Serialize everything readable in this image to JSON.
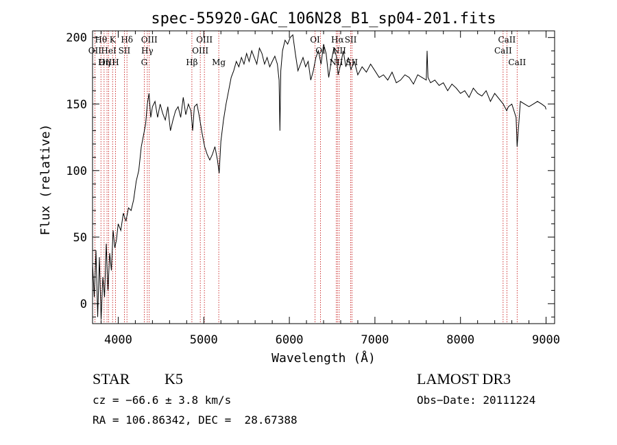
{
  "chart_data": {
    "type": "line",
    "title": "spec-55920-GAC_106N28_B1_sp04-201.fits",
    "xlabel": "Wavelength (Å)",
    "ylabel": "Flux (relative)",
    "xlim": [
      3700,
      9100
    ],
    "ylim": [
      -15,
      205
    ],
    "xticks": [
      4000,
      5000,
      6000,
      7000,
      8000,
      9000
    ],
    "yticks": [
      0,
      50,
      100,
      150,
      200
    ],
    "series": [
      {
        "name": "spectrum",
        "x": [
          3700,
          3720,
          3740,
          3760,
          3780,
          3800,
          3820,
          3840,
          3860,
          3880,
          3900,
          3920,
          3940,
          3960,
          3980,
          4000,
          4030,
          4060,
          4090,
          4120,
          4150,
          4180,
          4210,
          4240,
          4270,
          4300,
          4320,
          4340,
          4360,
          4380,
          4400,
          4430,
          4460,
          4490,
          4520,
          4550,
          4580,
          4610,
          4640,
          4670,
          4700,
          4730,
          4760,
          4790,
          4820,
          4850,
          4870,
          4890,
          4920,
          4950,
          4980,
          5010,
          5040,
          5070,
          5100,
          5130,
          5160,
          5180,
          5200,
          5230,
          5260,
          5290,
          5320,
          5350,
          5380,
          5410,
          5440,
          5470,
          5500,
          5530,
          5560,
          5590,
          5620,
          5650,
          5680,
          5710,
          5740,
          5770,
          5800,
          5830,
          5860,
          5880,
          5890,
          5900,
          5920,
          5950,
          5980,
          6010,
          6040,
          6070,
          6100,
          6130,
          6160,
          6190,
          6220,
          6250,
          6280,
          6310,
          6340,
          6370,
          6400,
          6430,
          6460,
          6490,
          6520,
          6550,
          6570,
          6600,
          6630,
          6660,
          6690,
          6720,
          6760,
          6800,
          6850,
          6900,
          6950,
          7000,
          7050,
          7100,
          7150,
          7200,
          7250,
          7300,
          7350,
          7400,
          7450,
          7500,
          7550,
          7600,
          7610,
          7620,
          7650,
          7700,
          7750,
          7800,
          7850,
          7900,
          7950,
          8000,
          8050,
          8100,
          8150,
          8200,
          8250,
          8300,
          8350,
          8400,
          8450,
          8500,
          8540,
          8560,
          8600,
          8650,
          8662,
          8700,
          8750,
          8800,
          8850,
          8900,
          8950,
          8990,
          9000
        ],
        "values": [
          30,
          5,
          40,
          -10,
          35,
          -12,
          20,
          5,
          45,
          10,
          38,
          25,
          55,
          42,
          48,
          60,
          55,
          68,
          62,
          72,
          70,
          78,
          92,
          100,
          118,
          128,
          135,
          150,
          158,
          140,
          148,
          152,
          140,
          150,
          143,
          138,
          148,
          130,
          138,
          145,
          148,
          140,
          155,
          142,
          150,
          145,
          130,
          148,
          150,
          140,
          128,
          118,
          112,
          108,
          112,
          118,
          108,
          98,
          122,
          138,
          150,
          160,
          170,
          175,
          182,
          178,
          185,
          180,
          188,
          182,
          190,
          185,
          180,
          192,
          188,
          180,
          185,
          178,
          182,
          186,
          180,
          168,
          130,
          175,
          190,
          198,
          195,
          200,
          202,
          188,
          175,
          180,
          185,
          178,
          182,
          168,
          175,
          185,
          190,
          180,
          195,
          188,
          170,
          182,
          192,
          186,
          172,
          180,
          190,
          178,
          185,
          176,
          182,
          172,
          178,
          174,
          180,
          175,
          170,
          172,
          168,
          174,
          166,
          168,
          172,
          170,
          165,
          172,
          170,
          168,
          190,
          170,
          166,
          168,
          164,
          166,
          160,
          165,
          162,
          158,
          160,
          155,
          162,
          158,
          156,
          160,
          152,
          158,
          154,
          150,
          145,
          148,
          150,
          140,
          118,
          152,
          150,
          148,
          150,
          152,
          150,
          148,
          146
        ]
      }
    ],
    "emission_lines": [
      {
        "label": "Hθ",
        "wl": 3798,
        "row": 1
      },
      {
        "label": "K",
        "wl": 3934,
        "row": 1
      },
      {
        "label": "Hδ",
        "wl": 4102,
        "row": 1
      },
      {
        "label": "OIII",
        "wl": 4363,
        "row": 1
      },
      {
        "label": "OIII",
        "wl": 5007,
        "row": 1
      },
      {
        "label": "OI",
        "wl": 6300,
        "row": 1
      },
      {
        "label": "Hα",
        "wl": 6563,
        "row": 1
      },
      {
        "label": "SII",
        "wl": 6717,
        "row": 1
      },
      {
        "label": "CaII",
        "wl": 8542,
        "row": 1
      },
      {
        "label": "OII",
        "wl": 3727,
        "row": 2
      },
      {
        "label": "HeI",
        "wl": 3889,
        "row": 2
      },
      {
        "label": "SII",
        "wl": 4072,
        "row": 2
      },
      {
        "label": "Hγ",
        "wl": 4340,
        "row": 2
      },
      {
        "label": "OIII",
        "wl": 4959,
        "row": 2
      },
      {
        "label": "OI",
        "wl": 6364,
        "row": 2
      },
      {
        "label": "NII",
        "wl": 6583,
        "row": 2
      },
      {
        "label": "CaII",
        "wl": 8498,
        "row": 2
      },
      {
        "label": "OIII",
        "wl": 3869,
        "row": 3
      },
      {
        "label": "Hη",
        "wl": 3835,
        "row": 3
      },
      {
        "label": "H",
        "wl": 3968,
        "row": 3
      },
      {
        "label": "G",
        "wl": 4304,
        "row": 3
      },
      {
        "label": "Hβ",
        "wl": 4861,
        "row": 3
      },
      {
        "label": "Mg",
        "wl": 5175,
        "row": 3
      },
      {
        "label": "NII",
        "wl": 6548,
        "row": 3
      },
      {
        "label": "SII",
        "wl": 6731,
        "row": 3
      },
      {
        "label": "CaII",
        "wl": 8662,
        "row": 3
      }
    ]
  },
  "info": {
    "class_label": "STAR",
    "subclass": "K5",
    "survey": "LAMOST DR3",
    "cz": "cz = −66.6 ± 3.8 km/s",
    "obs_date": "Obs−Date: 20111224",
    "radec": "RA = 106.86342, DEC =  28.67388"
  }
}
